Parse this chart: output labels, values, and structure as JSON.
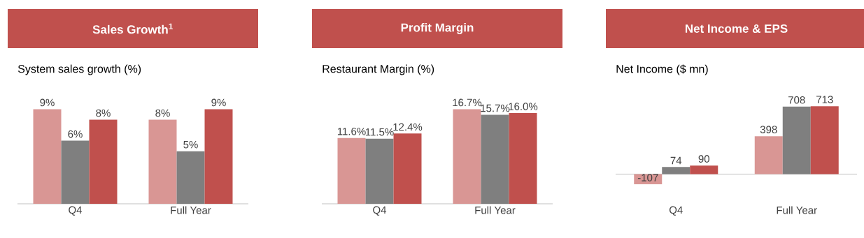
{
  "chart_data": [
    {
      "type": "bar",
      "title": "Sales Growth$^{1}$",
      "subtitle": "System sales growth (%)",
      "categories": [
        "Q4",
        "Full Year"
      ],
      "tick_labels": "x",
      "series": [
        {
          "color": "#d99694",
          "values": [
            9,
            8
          ],
          "value_labels": [
            "9%",
            "8%"
          ]
        },
        {
          "color": "#7f7f7f",
          "values": [
            6,
            5
          ],
          "value_labels": [
            "6%",
            "5%"
          ]
        },
        {
          "color": "#c0504d",
          "values": [
            8,
            9
          ],
          "value_labels": [
            "8%",
            "9%"
          ]
        }
      ]
    },
    {
      "type": "bar",
      "title": "Profit Margin",
      "subtitle": "Restaurant Margin (%)",
      "categories": [
        "Q4",
        "Full Year"
      ],
      "tick_labels": "x",
      "series": [
        {
          "color": "#d99694",
          "values": [
            11.6,
            16.7
          ],
          "value_labels": [
            "11.6%",
            "16.7%"
          ]
        },
        {
          "color": "#7f7f7f",
          "values": [
            11.5,
            15.7
          ],
          "value_labels": [
            "11.5%",
            "15.7%"
          ]
        },
        {
          "color": "#c0504d",
          "values": [
            12.4,
            16.0
          ],
          "value_labels": [
            "12.4%",
            "16.0%"
          ]
        }
      ]
    },
    {
      "type": "bar",
      "title": "Net Income & EPS",
      "subtitle": "Net Income ($ mn)",
      "categories": [
        "Q4",
        "Full Year"
      ],
      "tick_labels": "x",
      "data_labels": true,
      "series": [
        {
          "color": "#d99694",
          "values": [
            -107,
            398
          ]
        },
        {
          "color": "#7f7f7f",
          "values": [
            74,
            708
          ]
        },
        {
          "color": "#c0504d",
          "values": [
            90,
            713
          ]
        }
      ]
    }
  ]
}
